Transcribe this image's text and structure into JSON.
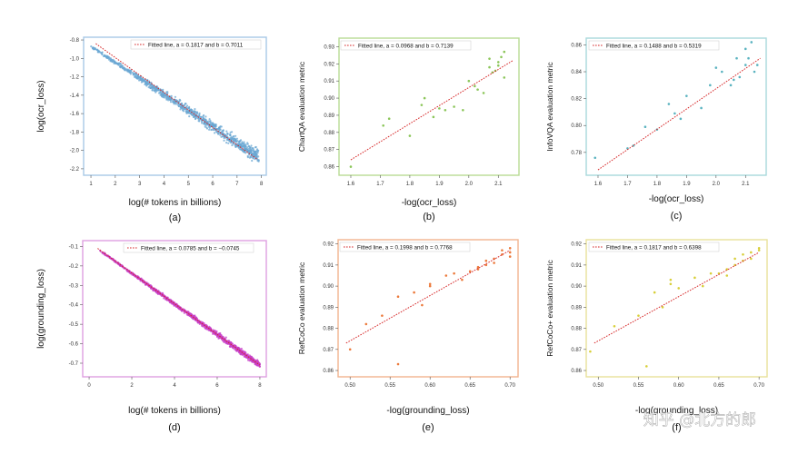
{
  "watermark": "知乎 @北方的郎",
  "chart_data": [
    {
      "id": "a",
      "type": "scatter",
      "caption": "(a)",
      "xlabel": "log(# tokens in billions)",
      "ylabel": "log(ocr_loss)",
      "xlim": [
        0.7,
        8.2
      ],
      "ylim": [
        -2.27,
        -0.77
      ],
      "xticks": [
        1,
        2,
        3,
        4,
        5,
        6,
        7,
        8
      ],
      "xtick_labels": [
        "1",
        "2",
        "3",
        "4",
        "5",
        "6",
        "7",
        "8"
      ],
      "yticks": [
        -0.8,
        -1.0,
        -1.2,
        -1.4,
        -1.6,
        -1.8,
        -2.0,
        -2.2
      ],
      "ytick_labels": [
        "-0.8",
        "-1.0",
        "-1.2",
        "-1.4",
        "-1.6",
        "-1.8",
        "-2.0",
        "-2.2"
      ],
      "color": "#6aa7d3",
      "border": "#a9c9e6",
      "legend": "Fitted line,  a = 0.1817 and b = 0.7011",
      "fit": {
        "x": [
          1.2,
          7.85
        ],
        "y": [
          -0.84,
          -2.1
        ]
      },
      "cloud": {
        "x0": 1.0,
        "x1": 7.9,
        "y0": -0.87,
        "y1": -2.07,
        "spread0": 0.02,
        "spread1": 0.15,
        "n": 900
      }
    },
    {
      "id": "b",
      "type": "scatter",
      "caption": "(b)",
      "xlabel": "-log(ocr_loss)",
      "ylabel": "ChartQA evaluation metric",
      "xlim": [
        1.56,
        2.17
      ],
      "ylim": [
        0.855,
        0.935
      ],
      "xticks": [
        1.6,
        1.7,
        1.8,
        1.9,
        2.0,
        2.1
      ],
      "xtick_labels": [
        "1.6",
        "1.7",
        "1.8",
        "1.9",
        "2.0",
        "2.1"
      ],
      "yticks": [
        0.86,
        0.87,
        0.88,
        0.89,
        0.9,
        0.91,
        0.92,
        0.93
      ],
      "ytick_labels": [
        "0.86",
        "0.87",
        "0.88",
        "0.89",
        "0.90",
        "0.91",
        "0.92",
        "0.93"
      ],
      "color": "#8cc65a",
      "border": "#b8dc94",
      "legend": "Fitted line,  a = 0.0968 and b = 0.7139",
      "fit": {
        "x": [
          1.6,
          2.15
        ],
        "y": [
          0.864,
          0.922
        ]
      },
      "x": [
        1.6,
        1.71,
        1.73,
        1.8,
        1.84,
        1.85,
        1.88,
        1.9,
        1.92,
        1.95,
        1.98,
        2.0,
        2.02,
        2.05,
        2.07,
        2.07,
        2.08,
        2.09,
        2.1,
        2.1,
        2.11,
        2.12,
        2.12,
        2.03
      ],
      "y": [
        0.86,
        0.884,
        0.888,
        0.878,
        0.896,
        0.9,
        0.889,
        0.894,
        0.893,
        0.895,
        0.893,
        0.91,
        0.907,
        0.903,
        0.918,
        0.923,
        0.915,
        0.916,
        0.919,
        0.921,
        0.924,
        0.927,
        0.912,
        0.905
      ]
    },
    {
      "id": "c",
      "type": "scatter",
      "caption": "(c)",
      "xlabel": "-log(ocr_loss)",
      "ylabel": "InfoVQA evaluation metric",
      "xlim": [
        1.56,
        2.17
      ],
      "ylim": [
        0.763,
        0.865
      ],
      "xticks": [
        1.6,
        1.7,
        1.8,
        1.9,
        2.0,
        2.1
      ],
      "xtick_labels": [
        "1.6",
        "1.7",
        "1.8",
        "1.9",
        "2.0",
        "2.1"
      ],
      "yticks": [
        0.78,
        0.8,
        0.82,
        0.84,
        0.86
      ],
      "ytick_labels": [
        "0.78",
        "0.80",
        "0.82",
        "0.84",
        "0.86"
      ],
      "color": "#5bb3c0",
      "border": "#a9d8dc",
      "legend": "Fitted line,  a = 0.1488 and b = 0.5319",
      "fit": {
        "x": [
          1.6,
          2.15
        ],
        "y": [
          0.767,
          0.85
        ]
      },
      "x": [
        1.59,
        1.7,
        1.72,
        1.76,
        1.8,
        1.84,
        1.86,
        1.88,
        1.9,
        1.95,
        1.98,
        2.0,
        2.02,
        2.05,
        2.06,
        2.07,
        2.08,
        2.1,
        2.1,
        2.11,
        2.12,
        2.13,
        2.14
      ],
      "y": [
        0.776,
        0.783,
        0.785,
        0.799,
        0.797,
        0.816,
        0.809,
        0.805,
        0.822,
        0.813,
        0.83,
        0.843,
        0.84,
        0.83,
        0.834,
        0.85,
        0.836,
        0.845,
        0.857,
        0.85,
        0.862,
        0.84,
        0.845
      ]
    },
    {
      "id": "d",
      "type": "scatter",
      "caption": "(d)",
      "xlabel": "log(# tokens in billions)",
      "ylabel": "log(grounding_loss)",
      "xlim": [
        -0.3,
        8.3
      ],
      "ylim": [
        -0.77,
        -0.07
      ],
      "xticks": [
        0,
        2,
        4,
        6,
        8
      ],
      "xtick_labels": [
        "0",
        "2",
        "4",
        "6",
        "8"
      ],
      "yticks": [
        -0.1,
        -0.2,
        -0.3,
        -0.4,
        -0.5,
        -0.6,
        -0.7
      ],
      "ytick_labels": [
        "-0.1",
        "-0.2",
        "-0.3",
        "-0.4",
        "-0.5",
        "-0.6",
        "-0.7"
      ],
      "color": "#c73fc7",
      "border": "#dfa0e0",
      "legend": "Fitted line,  a = 0.0785 and b = −0.0745",
      "fit": {
        "x": [
          0.4,
          8.0
        ],
        "y": [
          -0.11,
          -0.71
        ]
      },
      "cloud": {
        "x0": 0.5,
        "x1": 8.0,
        "y0": -0.12,
        "y1": -0.71,
        "spread0": 0.008,
        "spread1": 0.03,
        "n": 1100
      }
    },
    {
      "id": "e",
      "type": "scatter",
      "caption": "(e)",
      "xlabel": "-log(grounding_loss)",
      "ylabel": "RefCoCo evaluation metric",
      "xlim": [
        0.485,
        0.71
      ],
      "ylim": [
        0.857,
        0.922
      ],
      "xticks": [
        0.5,
        0.55,
        0.6,
        0.65,
        0.7
      ],
      "xtick_labels": [
        "0.50",
        "0.55",
        "0.60",
        "0.65",
        "0.70"
      ],
      "yticks": [
        0.86,
        0.87,
        0.88,
        0.89,
        0.9,
        0.91,
        0.92
      ],
      "ytick_labels": [
        "0.86",
        "0.87",
        "0.88",
        "0.89",
        "0.90",
        "0.91",
        "0.92"
      ],
      "color": "#ec7a3c",
      "border": "#f2b48e",
      "legend": "Fitted line,  a = 0.1998 and b = 0.7768",
      "fit": {
        "x": [
          0.495,
          0.7
        ],
        "y": [
          0.873,
          0.917
        ]
      },
      "x": [
        0.5,
        0.52,
        0.54,
        0.56,
        0.56,
        0.58,
        0.59,
        0.6,
        0.6,
        0.62,
        0.63,
        0.64,
        0.65,
        0.66,
        0.67,
        0.67,
        0.68,
        0.68,
        0.69,
        0.69,
        0.7,
        0.7,
        0.7,
        0.66
      ],
      "y": [
        0.87,
        0.882,
        0.886,
        0.863,
        0.895,
        0.897,
        0.891,
        0.9,
        0.901,
        0.905,
        0.906,
        0.903,
        0.907,
        0.908,
        0.912,
        0.91,
        0.911,
        0.913,
        0.915,
        0.917,
        0.916,
        0.918,
        0.914,
        0.909
      ]
    },
    {
      "id": "f",
      "type": "scatter",
      "caption": "(f)",
      "xlabel": "-log(grounding_loss)",
      "ylabel": "RefCoCo+ evaluation metric",
      "xlim": [
        0.485,
        0.71
      ],
      "ylim": [
        0.857,
        0.922
      ],
      "xticks": [
        0.5,
        0.55,
        0.6,
        0.65,
        0.7
      ],
      "xtick_labels": [
        "0.50",
        "0.55",
        "0.60",
        "0.65",
        "0.70"
      ],
      "yticks": [
        0.86,
        0.87,
        0.88,
        0.89,
        0.9,
        0.91,
        0.92
      ],
      "ytick_labels": [
        "0.86",
        "0.87",
        "0.88",
        "0.89",
        "0.90",
        "0.91",
        "0.92"
      ],
      "color": "#d8cf3a",
      "border": "#e8e29a",
      "legend": "Fitted line,  a = 0.1817 and b = 0.6398",
      "fit": {
        "x": [
          0.495,
          0.7
        ],
        "y": [
          0.873,
          0.916
        ]
      },
      "x": [
        0.49,
        0.52,
        0.55,
        0.56,
        0.57,
        0.58,
        0.59,
        0.59,
        0.6,
        0.62,
        0.63,
        0.64,
        0.65,
        0.66,
        0.67,
        0.67,
        0.68,
        0.69,
        0.69,
        0.7,
        0.7,
        0.68,
        0.66
      ],
      "y": [
        0.869,
        0.881,
        0.886,
        0.862,
        0.897,
        0.89,
        0.903,
        0.901,
        0.899,
        0.904,
        0.9,
        0.906,
        0.906,
        0.905,
        0.91,
        0.913,
        0.912,
        0.913,
        0.916,
        0.917,
        0.918,
        0.915,
        0.908
      ]
    }
  ]
}
